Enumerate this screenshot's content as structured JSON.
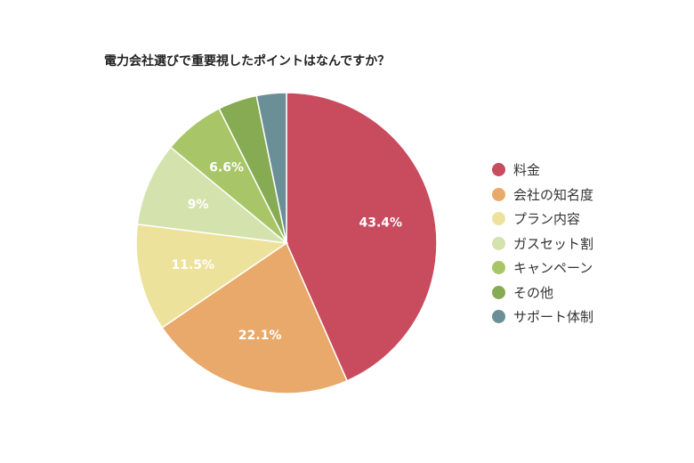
{
  "chart_data": {
    "type": "pie",
    "title": "電力会社選びで重要視したポイントはなんですか？",
    "legend_position": "right",
    "slices": [
      {
        "name": "料金",
        "value": 43.4,
        "label": "43.4%",
        "color": "#c84b5e"
      },
      {
        "name": "会社の知名度",
        "value": 22.1,
        "label": "22.1%",
        "color": "#e8a96a"
      },
      {
        "name": "プラン内容",
        "value": 11.5,
        "label": "11.5%",
        "color": "#ede29c"
      },
      {
        "name": "ガスセット割",
        "value": 9,
        "label": "9%",
        "color": "#d4e2ae"
      },
      {
        "name": "キャンペーン",
        "value": 6.6,
        "label": "6.6%",
        "color": "#a8c668"
      },
      {
        "name": "その他",
        "value": 4.2,
        "label": "",
        "color": "#86ab52"
      },
      {
        "name": "サポート体制",
        "value": 3.2,
        "label": "",
        "color": "#6b8f96"
      }
    ]
  }
}
